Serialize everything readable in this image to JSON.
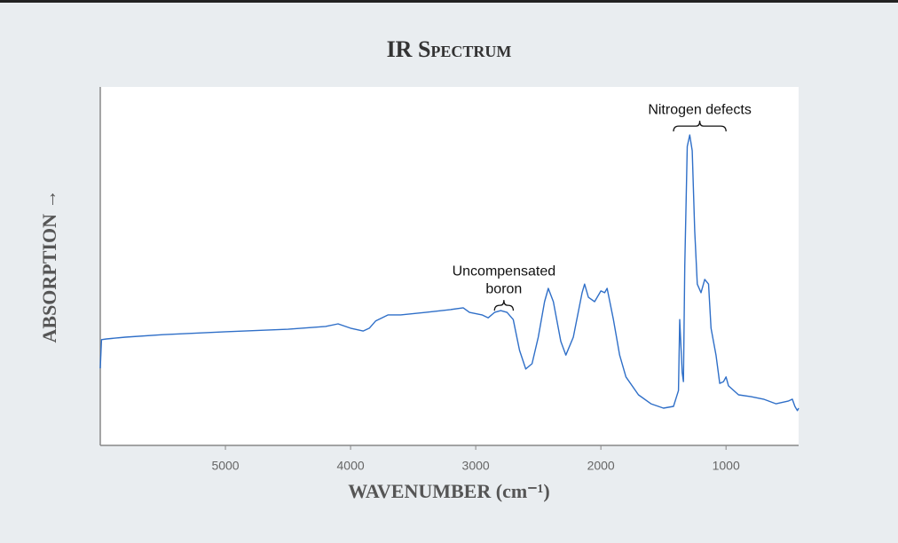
{
  "chart_data": {
    "type": "line",
    "title": "IR Spectrum",
    "x_label": "WAVENUMBER (cm⁻¹)",
    "y_label": "ABSORPTION →",
    "xlim": [
      6000,
      420
    ],
    "xticks": [
      5000,
      4000,
      3000,
      2000,
      1000
    ],
    "ylim": [
      0,
      100
    ],
    "x_reversed": true,
    "grid": false,
    "series": [
      {
        "name": "IR spectrum",
        "color": "#2f6fc8",
        "x": [
          6000,
          5990,
          5950,
          5800,
          5500,
          5000,
          4500,
          4200,
          4100,
          4000,
          3900,
          3850,
          3800,
          3700,
          3600,
          3400,
          3200,
          3100,
          3050,
          2950,
          2900,
          2850,
          2800,
          2750,
          2700,
          2650,
          2600,
          2550,
          2500,
          2450,
          2420,
          2380,
          2320,
          2280,
          2220,
          2150,
          2130,
          2100,
          2050,
          2000,
          1970,
          1950,
          1900,
          1850,
          1800,
          1700,
          1600,
          1500,
          1420,
          1380,
          1370,
          1350,
          1340,
          1330,
          1310,
          1290,
          1270,
          1250,
          1230,
          1200,
          1170,
          1140,
          1120,
          1080,
          1050,
          1020,
          1000,
          980,
          900,
          800,
          700,
          600,
          500,
          470,
          450,
          430,
          420
        ],
        "values": [
          21.5,
          29.5,
          29.7,
          30.2,
          30.9,
          31.7,
          32.4,
          33.2,
          33.9,
          32.7,
          31.9,
          32.7,
          34.7,
          36.4,
          36.4,
          37.1,
          37.9,
          38.4,
          37.1,
          36.4,
          35.6,
          37.1,
          37.6,
          37.1,
          35.1,
          26.5,
          21.3,
          22.8,
          30.2,
          40.1,
          43.8,
          40.1,
          29.0,
          25.2,
          30.2,
          42.6,
          45.0,
          41.3,
          40.1,
          43.1,
          42.6,
          43.8,
          35.1,
          25.2,
          19.1,
          14.1,
          11.6,
          10.4,
          10.9,
          15.3,
          35.1,
          20.3,
          17.8,
          50.0,
          83.4,
          86.6,
          82.2,
          59.9,
          45.0,
          42.6,
          46.3,
          45.0,
          32.7,
          25.2,
          17.3,
          17.8,
          19.1,
          16.6,
          14.1,
          13.6,
          12.9,
          11.6,
          12.4,
          12.9,
          10.9,
          9.7,
          10.4
        ]
      }
    ],
    "annotations": [
      {
        "lines": [
          "Nitrogen defects"
        ],
        "x_from": 1420,
        "x_to": 1000,
        "y": 87.6
      },
      {
        "lines": [
          "Uncompensated",
          "boron"
        ],
        "x_from": 2850,
        "x_to": 2700,
        "y": 37.6
      }
    ]
  }
}
